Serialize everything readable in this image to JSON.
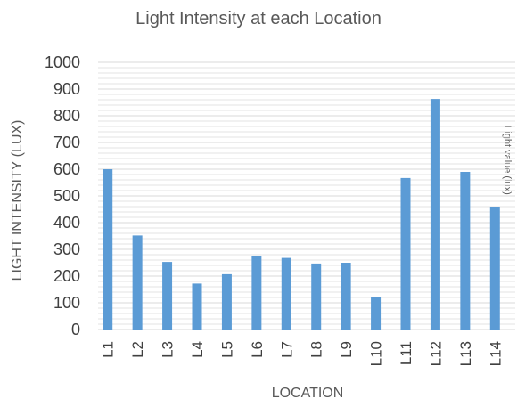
{
  "chart_data": {
    "type": "bar",
    "title": "Light Intensity at each Location",
    "xlabel": "LOCATION",
    "ylabel": "LIGHT INTENSITY (LUX)",
    "secondary_label": "Light value (lux)",
    "categories": [
      "L1",
      "L2",
      "L3",
      "L4",
      "L5",
      "L6",
      "L7",
      "L8",
      "L9",
      "L10",
      "L11",
      "L12",
      "L13",
      "L14"
    ],
    "series": [
      {
        "values": [
          600,
          352,
          253,
          172,
          207,
          275,
          268,
          247,
          250,
          123,
          567,
          863,
          590,
          460
        ]
      }
    ],
    "ylim": [
      0,
      1000
    ],
    "yticks": [
      "0",
      "100",
      "200",
      "300",
      "400",
      "500",
      "600",
      "700",
      "800",
      "900",
      "1000"
    ],
    "grid": true,
    "bar_color": "#5b9bd5",
    "grid_color": "#e3e3e3"
  }
}
